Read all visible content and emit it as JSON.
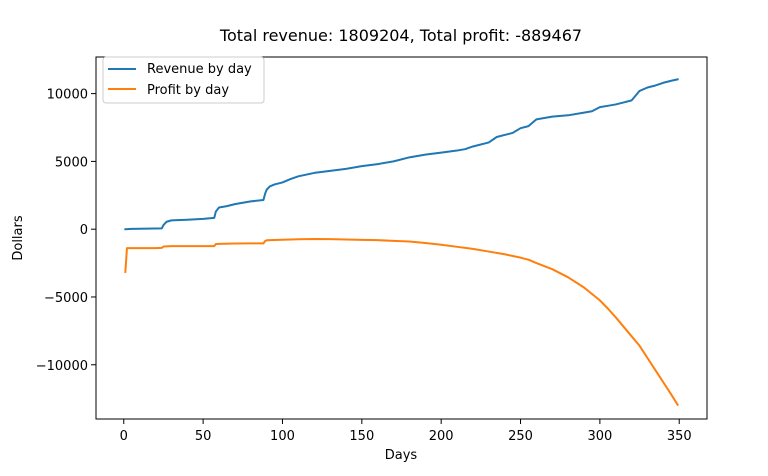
{
  "chart_data": {
    "type": "line",
    "title": "Total revenue: 1809204, Total profit: -889467",
    "xlabel": "Days",
    "ylabel": "Dollars",
    "xlim": [
      -17.5,
      367.5
    ],
    "ylim": [
      -14000,
      12700
    ],
    "x_ticks": [
      0,
      50,
      100,
      150,
      200,
      250,
      300,
      350
    ],
    "y_ticks": [
      -10000,
      -5000,
      0,
      5000,
      10000
    ],
    "x_tick_labels": [
      "0",
      "50",
      "100",
      "150",
      "200",
      "250",
      "300",
      "350"
    ],
    "y_tick_labels": [
      "−10000",
      "−5000",
      "0",
      "5000",
      "10000"
    ],
    "grid": false,
    "legend_position": "top-left",
    "series": [
      {
        "name": "Revenue by day",
        "color": "#1f77b4",
        "x": [
          1,
          5,
          10,
          15,
          20,
          24,
          25,
          27,
          30,
          40,
          50,
          57,
          58,
          60,
          65,
          70,
          75,
          80,
          88,
          89,
          90,
          92,
          95,
          100,
          105,
          110,
          120,
          130,
          140,
          150,
          160,
          170,
          180,
          190,
          200,
          210,
          215,
          220,
          230,
          235,
          240,
          245,
          250,
          255,
          260,
          270,
          280,
          290,
          295,
          300,
          305,
          310,
          315,
          320,
          325,
          330,
          335,
          340,
          345,
          349
        ],
        "y": [
          0,
          20,
          30,
          40,
          50,
          60,
          300,
          550,
          650,
          700,
          760,
          830,
          1300,
          1600,
          1700,
          1850,
          1950,
          2050,
          2150,
          2600,
          2900,
          3150,
          3300,
          3450,
          3700,
          3900,
          4150,
          4300,
          4450,
          4650,
          4800,
          5000,
          5300,
          5500,
          5650,
          5800,
          5900,
          6100,
          6400,
          6800,
          6950,
          7100,
          7450,
          7600,
          8100,
          8300,
          8400,
          8600,
          8700,
          9000,
          9100,
          9200,
          9350,
          9500,
          10200,
          10450,
          10600,
          10800,
          10950,
          11050
        ]
      },
      {
        "name": "Profit by day",
        "color": "#ff7f0e",
        "x": [
          1,
          2,
          10,
          20,
          24,
          25,
          30,
          40,
          50,
          57,
          58,
          60,
          70,
          80,
          88,
          89,
          90,
          100,
          110,
          120,
          130,
          140,
          150,
          160,
          170,
          180,
          190,
          200,
          210,
          220,
          230,
          240,
          250,
          255,
          260,
          270,
          280,
          290,
          300,
          305,
          310,
          315,
          320,
          325,
          330,
          335,
          340,
          345,
          349
        ],
        "y": [
          -3150,
          -1400,
          -1400,
          -1400,
          -1380,
          -1280,
          -1250,
          -1250,
          -1250,
          -1250,
          -1100,
          -1080,
          -1060,
          -1050,
          -1050,
          -880,
          -820,
          -780,
          -740,
          -720,
          -730,
          -760,
          -790,
          -810,
          -860,
          -910,
          -1020,
          -1150,
          -1300,
          -1450,
          -1650,
          -1850,
          -2100,
          -2250,
          -2500,
          -2950,
          -3550,
          -4300,
          -5250,
          -5850,
          -6500,
          -7200,
          -7900,
          -8600,
          -9500,
          -10400,
          -11300,
          -12200,
          -12950
        ]
      }
    ]
  }
}
